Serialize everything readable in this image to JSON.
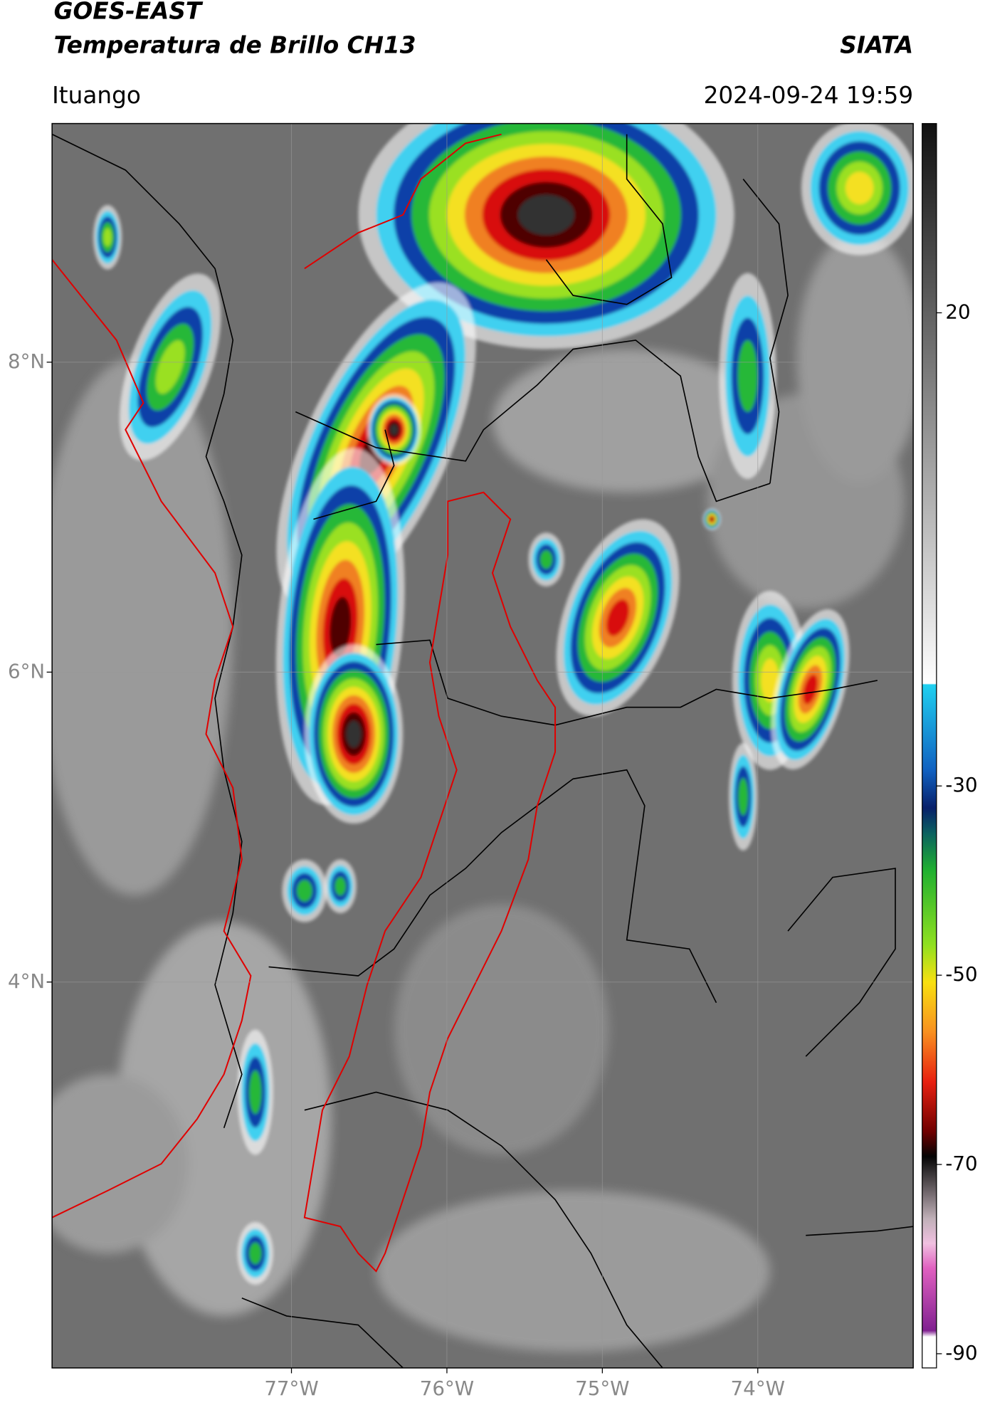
{
  "header": {
    "satellite": "GOES-EAST",
    "product": "Temperatura de Brillo CH13",
    "agency": "SIATA",
    "region": "Ituango",
    "datetime": "2024-09-24 19:59"
  },
  "chart_data": {
    "type": "map",
    "xlim": [
      -78.54,
      -73.0
    ],
    "ylim": [
      1.51,
      9.54
    ],
    "xticks": [
      {
        "value": -77,
        "label": "77°W"
      },
      {
        "value": -76,
        "label": "76°W"
      },
      {
        "value": -75,
        "label": "75°W"
      },
      {
        "value": -74,
        "label": "74°W"
      }
    ],
    "yticks": [
      {
        "value": 8,
        "label": "8°N"
      },
      {
        "value": 6,
        "label": "6°N"
      },
      {
        "value": 4,
        "label": "4°N"
      }
    ],
    "grid": true,
    "colorbar": {
      "lim": [
        -91.5,
        40
      ],
      "ticks": [
        20,
        -30,
        -50,
        -70,
        -90
      ]
    }
  }
}
